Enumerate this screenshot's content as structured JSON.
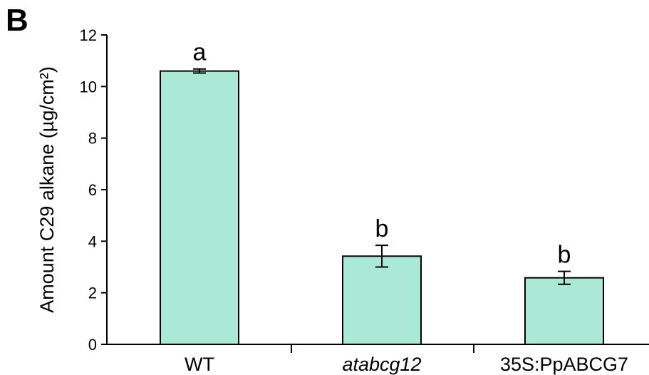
{
  "panel_label": "B",
  "colors": {
    "bar_fill": "#abe9d6",
    "stroke": "#000000"
  },
  "chart_data": {
    "type": "bar",
    "title": "",
    "xlabel": "",
    "ylabel": "Amount C29 alkane (µg/cm²)",
    "categories": [
      "WT",
      "atabcg12",
      "35S:PpABCG7"
    ],
    "italic_categories": [
      false,
      true,
      false
    ],
    "values": [
      10.6,
      3.42,
      2.58
    ],
    "error": [
      0.08,
      0.42,
      0.25
    ],
    "significance": [
      "a",
      "b",
      "b"
    ],
    "ylim": [
      0,
      12
    ],
    "yticks": [
      0,
      2,
      4,
      6,
      8,
      10,
      12
    ],
    "grid": false
  }
}
